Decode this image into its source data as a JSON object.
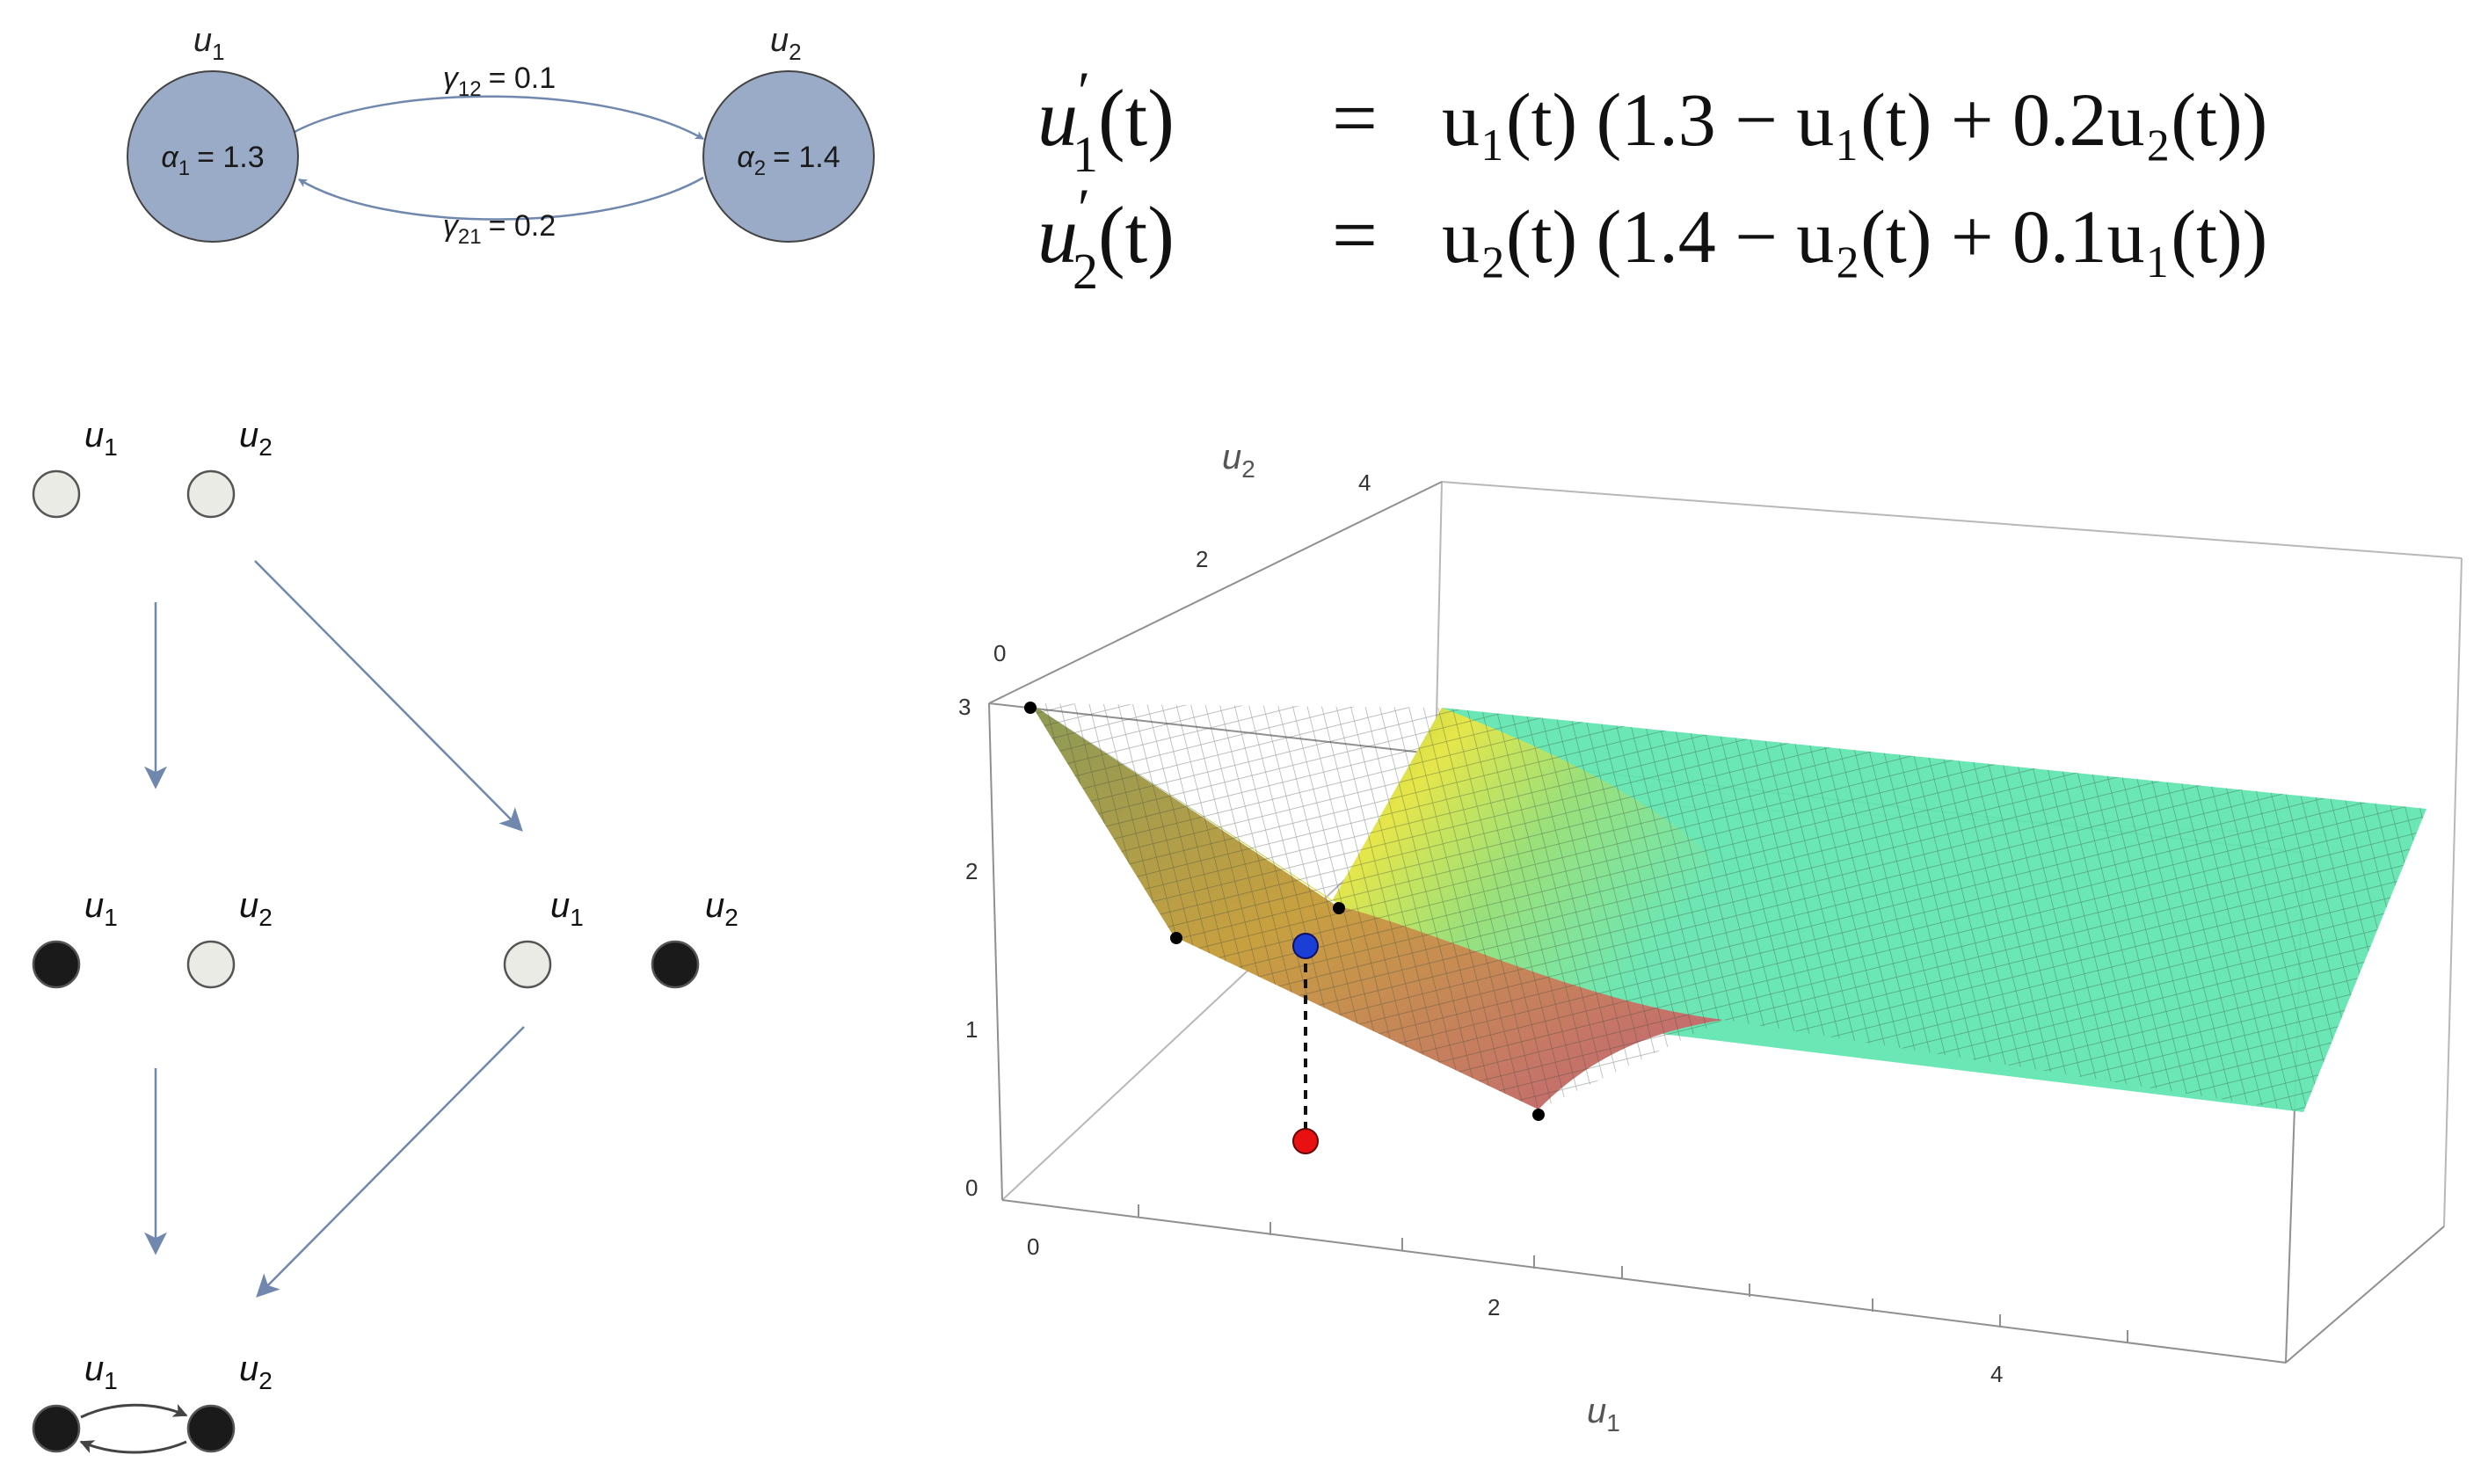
{
  "network": {
    "nodes": [
      {
        "name": "u",
        "sub": "1",
        "param_sym": "α",
        "param_sub": "1",
        "param_value": "= 1.3",
        "color": "#9aabc7"
      },
      {
        "name": "u",
        "sub": "2",
        "param_sym": "α",
        "param_sub": "2",
        "param_value": "= 1.4",
        "color": "#9aabc7"
      }
    ],
    "edges": [
      {
        "sym": "γ",
        "sub": "12",
        "value": "= 0.1"
      },
      {
        "sym": "γ",
        "sub": "21",
        "value": "= 0.2"
      }
    ]
  },
  "equations": [
    {
      "lhs": "u",
      "lhs_sub": "1",
      "rhs": "u₁(t) (1.3 − u₁(t) + 0.2u₂(t))"
    },
    {
      "lhs": "u",
      "lhs_sub": "2",
      "rhs": "u₂(t) (1.4 − u₂(t) + 0.1u₁(t))"
    }
  ],
  "equation_parts": {
    "prime": "′",
    "arg": "(t)",
    "equals": "="
  },
  "state_lattice": {
    "var_labels": [
      "u",
      "u"
    ],
    "var_subs": [
      "1",
      "2"
    ],
    "states": [
      {
        "id": "none",
        "u1": "empty",
        "u2": "empty"
      },
      {
        "id": "u1-only",
        "u1": "filled",
        "u2": "empty"
      },
      {
        "id": "u2-only",
        "u1": "empty",
        "u2": "filled"
      },
      {
        "id": "both",
        "u1": "filled",
        "u2": "filled"
      }
    ],
    "empty_color": "#ebebe6",
    "filled_color": "#1a1a1a",
    "arrow_color": "#7088ad"
  },
  "surface_plot": {
    "axis_labels": {
      "x": "u",
      "x_sub": "1",
      "y": "u",
      "y_sub": "2"
    },
    "x_ticks": [
      "0",
      "2",
      "4"
    ],
    "y_ticks": [
      "0",
      "2",
      "4"
    ],
    "z_ticks": [
      "0",
      "1",
      "2",
      "3"
    ],
    "marker_colors": {
      "blue": "#1b3fd6",
      "red": "#e81010"
    }
  }
}
